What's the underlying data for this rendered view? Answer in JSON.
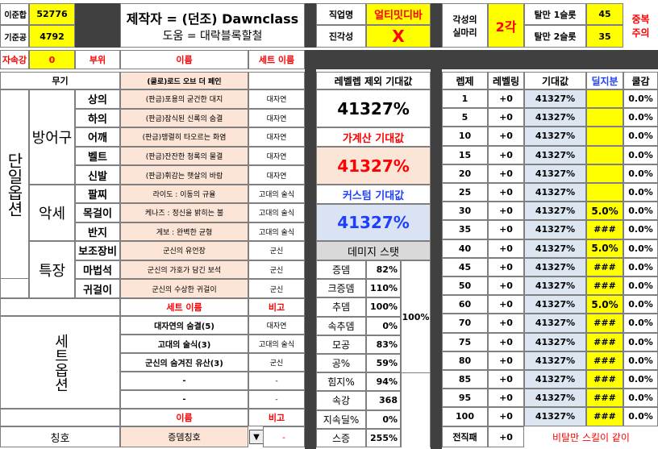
{
  "top": {
    "lbl_base_cut": "이준합",
    "val_base_cut": "52776",
    "lbl_base_atk": "기준공",
    "val_base_atk": "4792",
    "lbl_elem": "자속강",
    "val_elem": "0",
    "author": "제작자 = (던조) Dawnclass",
    "helper": "도움 = 대락블록할철",
    "job_lbl": "직업명",
    "job_val": "얼티밋디바",
    "awk_lbl": "진각성",
    "awk_val": "X",
    "awk2_lbl1": "각성의",
    "awk2_lbl2": "실마리",
    "awk2_val": "2각",
    "sl1_lbl": "탈만 1슬롯",
    "sl1_val": "45",
    "sl2_lbl": "탈만 2슬롯",
    "sl2_val": "35",
    "warn1": "중복",
    "warn2": "주의"
  },
  "equip_header": {
    "part": "부위",
    "name": "이름",
    "set": "세트 이름"
  },
  "equip": {
    "weapon": {
      "part": "무기",
      "name": "(쿨로)로드 오브 더 페인",
      "set": ""
    },
    "armor_group": "방어구",
    "acc_group": "악세",
    "special_group": "특장",
    "single_group": "단일옵션",
    "items": [
      {
        "part": "상의",
        "name": "(판금)포용의 굳건한 대지",
        "set": "대자연"
      },
      {
        "part": "하의",
        "name": "(판금)잠식된 신록의 숨결",
        "set": "대자연"
      },
      {
        "part": "어깨",
        "name": "(판금)맹렬히 타오르는 화염",
        "set": "대자연"
      },
      {
        "part": "벨트",
        "name": "(판금)잔잔한 청록의 물결",
        "set": "대자연"
      },
      {
        "part": "신발",
        "name": "(판금)휘감는 햇살의 바람",
        "set": "대자연"
      },
      {
        "part": "팔찌",
        "name": "라이도 : 이동의 규율",
        "set": "고대의 술식"
      },
      {
        "part": "목걸이",
        "name": "케나즈 : 정신을 밝히는 불",
        "set": "고대의 술식"
      },
      {
        "part": "반지",
        "name": "게보 : 완벽한 균형",
        "set": "고대의 술식"
      },
      {
        "part": "보조장비",
        "name": "군신의 유언장",
        "set": "군신"
      },
      {
        "part": "마법석",
        "name": "군신의 가호가 담긴 보석",
        "set": "군신"
      },
      {
        "part": "귀걸이",
        "name": "군신의 수상한 귀걸이",
        "set": "군신"
      }
    ]
  },
  "set_section": {
    "label": "세트옵션",
    "name_hdr": "세트 이름",
    "note_hdr": "비고",
    "rows": [
      {
        "name": "대자연의 숨결(5)",
        "note": "대자연"
      },
      {
        "name": "고대의 술식(3)",
        "note": "고대의 술식"
      },
      {
        "name": "군신의 숨겨진 유산(3)",
        "note": "군신"
      },
      {
        "name": "-",
        "note": "-"
      },
      {
        "name": "-",
        "note": "-"
      }
    ]
  },
  "title_section": {
    "name_hdr": "이름",
    "note_hdr": "비고",
    "label": "칭호",
    "value": "증뎀칭호",
    "note": "-"
  },
  "expect": {
    "base_lbl": "레벨렙 제외 기대값",
    "base_val": "41327%",
    "calc_lbl": "가계산 기대값",
    "calc_val": "41327%",
    "custom_lbl": "커스텀 기대값",
    "custom_val": "41327%"
  },
  "stats": {
    "header": "데미지 스탯",
    "side": "100%",
    "rows": [
      {
        "name": "증뎀",
        "val": "82%"
      },
      {
        "name": "크증뎀",
        "val": "110%"
      },
      {
        "name": "추뎀",
        "val": "100%"
      },
      {
        "name": "속추뎀",
        "val": "0%"
      },
      {
        "name": "모공",
        "val": "83%"
      },
      {
        "name": "공%",
        "val": "59%"
      },
      {
        "name": "힘지%",
        "val": "94%"
      },
      {
        "name": "속강",
        "val": "368"
      },
      {
        "name": "지속딜%",
        "val": "0%"
      },
      {
        "name": "스증",
        "val": "255%"
      }
    ]
  },
  "levels": {
    "headers": [
      "렙제",
      "레벨링",
      "기대값",
      "딜지분",
      "쿨감"
    ],
    "rows": [
      {
        "lv": "1",
        "lvl": "+0",
        "exp": "41327%",
        "share": "",
        "cd": "0.0%"
      },
      {
        "lv": "5",
        "lvl": "+0",
        "exp": "41327%",
        "share": "",
        "cd": "0.0%"
      },
      {
        "lv": "10",
        "lvl": "+0",
        "exp": "41327%",
        "share": "",
        "cd": "0.0%"
      },
      {
        "lv": "15",
        "lvl": "+0",
        "exp": "41327%",
        "share": "",
        "cd": "0.0%"
      },
      {
        "lv": "20",
        "lvl": "+0",
        "exp": "41327%",
        "share": "",
        "cd": "0.0%"
      },
      {
        "lv": "25",
        "lvl": "+0",
        "exp": "41327%",
        "share": "",
        "cd": "0.0%"
      },
      {
        "lv": "30",
        "lvl": "+0",
        "exp": "41327%",
        "share": "5.0%",
        "cd": "0.0%"
      },
      {
        "lv": "35",
        "lvl": "+0",
        "exp": "41327%",
        "share": "###",
        "cd": "0.0%"
      },
      {
        "lv": "40",
        "lvl": "+0",
        "exp": "41327%",
        "share": "5.0%",
        "cd": "0.0%"
      },
      {
        "lv": "45",
        "lvl": "+0",
        "exp": "41327%",
        "share": "###",
        "cd": "0.0%"
      },
      {
        "lv": "50",
        "lvl": "+0",
        "exp": "41327%",
        "share": "###",
        "cd": "0.0%"
      },
      {
        "lv": "60",
        "lvl": "+0",
        "exp": "41327%",
        "share": "5.0%",
        "cd": "0.0%"
      },
      {
        "lv": "70",
        "lvl": "+0",
        "exp": "41327%",
        "share": "###",
        "cd": "0.0%"
      },
      {
        "lv": "75",
        "lvl": "+0",
        "exp": "41327%",
        "share": "###",
        "cd": "0.0%"
      },
      {
        "lv": "80",
        "lvl": "+0",
        "exp": "41327%",
        "share": "###",
        "cd": "0.0%"
      },
      {
        "lv": "85",
        "lvl": "+0",
        "exp": "41327%",
        "share": "###",
        "cd": "0.0%"
      },
      {
        "lv": "95",
        "lvl": "+0",
        "exp": "41327%",
        "share": "###",
        "cd": "0.0%"
      },
      {
        "lv": "100",
        "lvl": "+0",
        "exp": "41327%",
        "share": "###",
        "cd": "0.0%"
      }
    ],
    "footer_lbl": "전직패",
    "footer_val": "+0",
    "note": "비탈만 스킬이 같이"
  }
}
